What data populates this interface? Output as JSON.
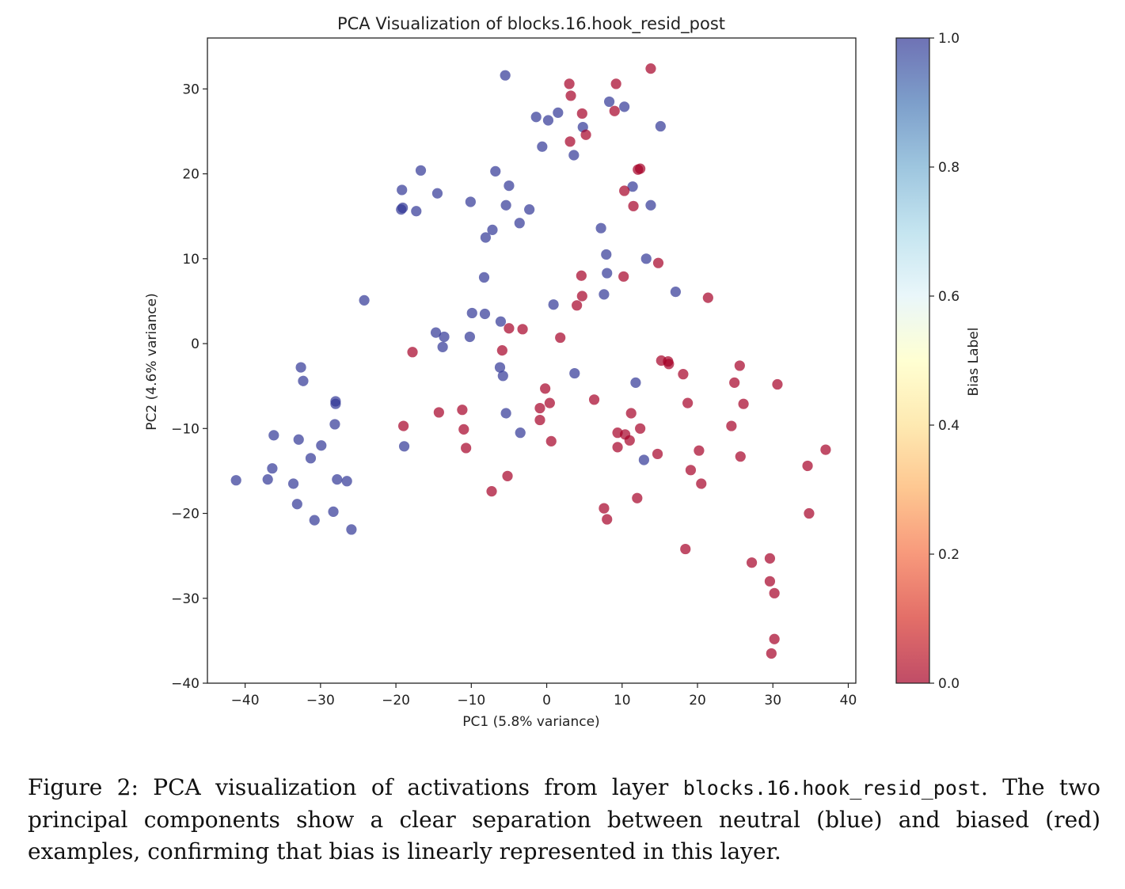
{
  "caption": {
    "prefix": "Figure 2: PCA visualization of activations from layer ",
    "code": "blocks.16.hook_resid_post",
    "suffix": ". The two principal components show a clear separation between neutral (blue) and biased (red) examples, confirming that bias is linearly represented in this layer."
  },
  "chart_data": {
    "type": "scatter",
    "title": "PCA Visualization of blocks.16.hook_resid_post",
    "xlabel": "PC1 (5.8% variance)",
    "ylabel": "PC2 (4.6% variance)",
    "xlim": [
      -45,
      41
    ],
    "ylim": [
      -40,
      36
    ],
    "xticks": [
      -40,
      -30,
      -20,
      -10,
      0,
      10,
      20,
      30,
      40
    ],
    "yticks": [
      -40,
      -30,
      -20,
      -10,
      0,
      10,
      20,
      30
    ],
    "grid": false,
    "colorbar": {
      "label": "Bias Label",
      "range": [
        0.0,
        1.0
      ],
      "ticks": [
        "0.0",
        "0.2",
        "0.4",
        "0.6",
        "0.8",
        "1.0"
      ],
      "colormap": "RdYlBu",
      "colors": [
        "#a50026",
        "#d73027",
        "#f46d43",
        "#fdae61",
        "#fee090",
        "#ffffbf",
        "#e0f3f8",
        "#abd9e9",
        "#74add1",
        "#4575b4",
        "#313695"
      ]
    },
    "marker_alpha": 0.7,
    "series": [
      {
        "label": 1.0,
        "color": "#313695",
        "points": [
          [
            -41.2,
            -16.1
          ],
          [
            -37.0,
            -16.0
          ],
          [
            -36.4,
            -14.7
          ],
          [
            -36.2,
            -10.8
          ],
          [
            -33.6,
            -16.5
          ],
          [
            -33.1,
            -18.9
          ],
          [
            -32.9,
            -11.3
          ],
          [
            -32.6,
            -2.8
          ],
          [
            -32.3,
            -4.4
          ],
          [
            -31.3,
            -13.5
          ],
          [
            -30.8,
            -20.8
          ],
          [
            -29.9,
            -12.0
          ],
          [
            -28.3,
            -19.8
          ],
          [
            -28.1,
            -9.5
          ],
          [
            -28.0,
            -6.8
          ],
          [
            -28.0,
            -7.1
          ],
          [
            -27.8,
            -16.0
          ],
          [
            -26.5,
            -16.2
          ],
          [
            -25.9,
            -21.9
          ],
          [
            -24.2,
            5.1
          ],
          [
            -19.3,
            15.8
          ],
          [
            -19.2,
            18.1
          ],
          [
            -19.1,
            16.0
          ],
          [
            -18.9,
            -12.1
          ],
          [
            -17.3,
            15.6
          ],
          [
            -16.7,
            20.4
          ],
          [
            -14.5,
            17.7
          ],
          [
            -14.7,
            1.3
          ],
          [
            -13.6,
            0.8
          ],
          [
            -13.8,
            -0.4
          ],
          [
            -10.1,
            16.7
          ],
          [
            -10.2,
            0.8
          ],
          [
            -9.9,
            3.6
          ],
          [
            -8.3,
            7.8
          ],
          [
            -8.2,
            3.5
          ],
          [
            -8.1,
            12.5
          ],
          [
            -7.2,
            13.4
          ],
          [
            -6.8,
            20.3
          ],
          [
            -6.1,
            2.6
          ],
          [
            -6.2,
            -2.8
          ],
          [
            -5.8,
            -3.8
          ],
          [
            -5.5,
            31.6
          ],
          [
            -5.4,
            16.3
          ],
          [
            -5.4,
            -8.2
          ],
          [
            -5.0,
            18.6
          ],
          [
            -3.6,
            14.2
          ],
          [
            -3.5,
            -10.5
          ],
          [
            -2.3,
            15.8
          ],
          [
            -1.4,
            26.7
          ],
          [
            -0.6,
            23.2
          ],
          [
            0.2,
            26.3
          ],
          [
            0.9,
            4.6
          ],
          [
            1.5,
            27.2
          ],
          [
            3.6,
            22.2
          ],
          [
            3.7,
            -3.5
          ],
          [
            4.8,
            25.5
          ],
          [
            7.2,
            13.6
          ],
          [
            7.6,
            5.8
          ],
          [
            7.9,
            10.5
          ],
          [
            8.0,
            8.3
          ],
          [
            8.3,
            28.5
          ],
          [
            10.3,
            27.9
          ],
          [
            11.4,
            18.5
          ],
          [
            11.8,
            -4.6
          ],
          [
            12.9,
            -13.7
          ],
          [
            13.2,
            10.0
          ],
          [
            13.8,
            16.3
          ],
          [
            15.1,
            25.6
          ],
          [
            17.1,
            6.1
          ]
        ]
      },
      {
        "label": 0.0,
        "color": "#a50026",
        "points": [
          [
            -19.0,
            -9.7
          ],
          [
            -17.8,
            -1.0
          ],
          [
            -14.3,
            -8.1
          ],
          [
            -11.2,
            -7.8
          ],
          [
            -11.0,
            -10.1
          ],
          [
            -10.7,
            -12.3
          ],
          [
            -7.3,
            -17.4
          ],
          [
            -5.9,
            -0.8
          ],
          [
            -5.2,
            -15.6
          ],
          [
            -5.0,
            1.8
          ],
          [
            -3.2,
            1.7
          ],
          [
            -0.9,
            -7.6
          ],
          [
            -0.9,
            -9.0
          ],
          [
            -0.2,
            -5.3
          ],
          [
            0.4,
            -7.0
          ],
          [
            0.6,
            -11.5
          ],
          [
            1.8,
            0.7
          ],
          [
            3.0,
            30.6
          ],
          [
            3.2,
            29.2
          ],
          [
            3.1,
            23.8
          ],
          [
            4.0,
            4.5
          ],
          [
            4.7,
            27.1
          ],
          [
            4.6,
            8.0
          ],
          [
            4.7,
            5.6
          ],
          [
            5.2,
            24.6
          ],
          [
            6.3,
            -6.6
          ],
          [
            7.6,
            -19.4
          ],
          [
            8.0,
            -20.7
          ],
          [
            9.0,
            27.4
          ],
          [
            9.2,
            30.6
          ],
          [
            9.4,
            -12.2
          ],
          [
            9.4,
            -10.5
          ],
          [
            10.2,
            7.9
          ],
          [
            10.3,
            18.0
          ],
          [
            10.4,
            -10.7
          ],
          [
            11.0,
            -11.4
          ],
          [
            11.2,
            -8.2
          ],
          [
            11.5,
            16.2
          ],
          [
            12.0,
            -18.2
          ],
          [
            12.1,
            20.5
          ],
          [
            12.4,
            -10.0
          ],
          [
            12.4,
            20.6
          ],
          [
            13.8,
            32.4
          ],
          [
            14.7,
            -13.0
          ],
          [
            14.8,
            9.5
          ],
          [
            15.2,
            -2.0
          ],
          [
            16.1,
            -2.1
          ],
          [
            16.2,
            -2.4
          ],
          [
            18.1,
            -3.6
          ],
          [
            18.4,
            -24.2
          ],
          [
            18.7,
            -7.0
          ],
          [
            19.1,
            -14.9
          ],
          [
            20.2,
            -12.6
          ],
          [
            20.5,
            -16.5
          ],
          [
            21.4,
            5.4
          ],
          [
            24.5,
            -9.7
          ],
          [
            24.9,
            -4.6
          ],
          [
            25.6,
            -2.6
          ],
          [
            25.7,
            -13.3
          ],
          [
            26.1,
            -7.1
          ],
          [
            27.2,
            -25.8
          ],
          [
            29.6,
            -25.3
          ],
          [
            29.6,
            -28.0
          ],
          [
            29.8,
            -36.5
          ],
          [
            30.2,
            -29.4
          ],
          [
            30.2,
            -34.8
          ],
          [
            30.6,
            -4.8
          ],
          [
            34.6,
            -14.4
          ],
          [
            34.8,
            -20.0
          ],
          [
            37.0,
            -12.5
          ]
        ]
      }
    ]
  }
}
